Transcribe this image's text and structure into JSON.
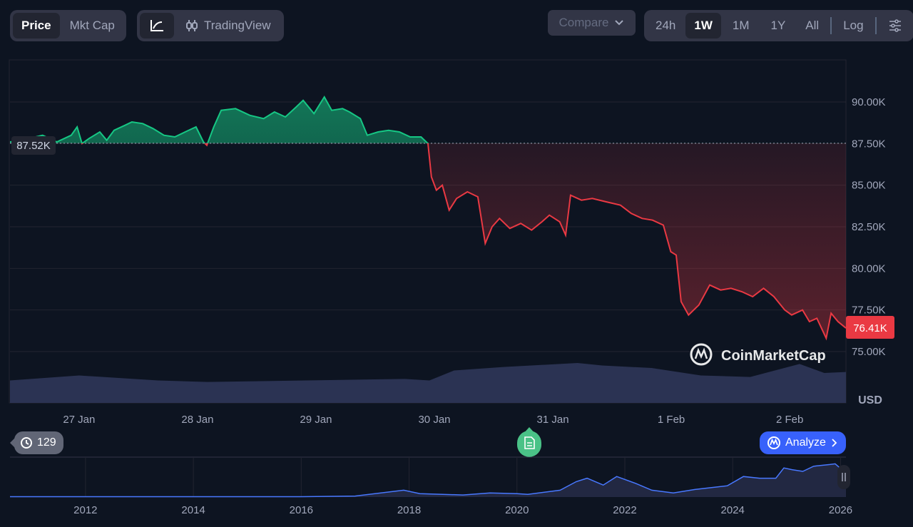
{
  "toolbar": {
    "metric_tabs": [
      "Price",
      "Mkt Cap"
    ],
    "active_metric": "Price",
    "chart_type_tradingview": "TradingView",
    "compare": "Compare",
    "ranges": [
      "24h",
      "1W",
      "1M",
      "1Y",
      "All"
    ],
    "active_range": "1W",
    "log": "Log"
  },
  "colors": {
    "up": "#16c784",
    "down": "#ea3943",
    "navigator": "#4878ff",
    "background": "#0d1421"
  },
  "watermark": "CoinMarketCap",
  "history_count": "129",
  "analyze_label": "Analyze",
  "chart_data": {
    "type": "line",
    "title": "",
    "currency_label": "USD",
    "baseline": 87.52,
    "baseline_label": "87.52K",
    "current": 76.41,
    "current_label": "76.41K",
    "ylim": [
      73.5,
      93
    ],
    "yticks": [
      75,
      77.5,
      80,
      82.5,
      85,
      87.5,
      90
    ],
    "ytick_labels": [
      "75.00K",
      "77.50K",
      "80.00K",
      "82.50K",
      "85.00K",
      "87.50K",
      "90.00K"
    ],
    "xlim_hours": [
      10,
      179.4
    ],
    "xticks_hours": [
      24,
      48,
      72,
      96,
      120,
      144,
      168
    ],
    "xtick_labels": [
      "27 Jan",
      "28 Jan",
      "29 Jan",
      "30 Jan",
      "31 Jan",
      "1 Feb",
      "2 Feb"
    ],
    "x_hours": [
      10,
      12.3,
      16.6,
      19.5,
      22.4,
      23.6,
      24.6,
      26,
      28.2,
      29.6,
      31.1,
      33.3,
      34.7,
      36.9,
      39,
      41.2,
      43.4,
      45.5,
      47.7,
      49.2,
      49.9,
      51.3,
      52.8,
      55.7,
      58.6,
      61.4,
      63.6,
      65.8,
      68,
      69.4,
      71.6,
      73.7,
      75.2,
      77.4,
      78.8,
      81,
      82.4,
      84.6,
      86.7,
      88.9,
      91.1,
      93.3,
      94.7,
      95.4,
      96.4,
      97.6,
      99,
      100.5,
      102.7,
      104.8,
      106.3,
      107.7,
      109.2,
      111.3,
      113.5,
      115.7,
      117.8,
      119.3,
      121.4,
      122.6,
      123.6,
      125.8,
      128,
      130.8,
      133.7,
      135.9,
      138.1,
      140.2,
      142.4,
      143.9,
      145,
      146,
      147.5,
      149.6,
      151.8,
      154,
      156.1,
      158.3,
      160.5,
      162.7,
      164.8,
      167,
      168.4,
      170.6,
      172,
      173.5,
      175.4,
      176.4,
      177.8,
      179.4
    ],
    "price_k": [
      87.6,
      87.7,
      88.0,
      87.6,
      88.0,
      88.5,
      87.5,
      87.8,
      88.2,
      87.7,
      88.3,
      88.6,
      88.8,
      88.7,
      88.4,
      88.0,
      87.9,
      88.2,
      88.5,
      87.6,
      87.4,
      88.5,
      89.5,
      89.6,
      89.2,
      89.0,
      89.4,
      89.1,
      89.7,
      90.1,
      89.3,
      90.3,
      89.5,
      89.6,
      89.4,
      89.0,
      88.0,
      88.2,
      88.3,
      88.2,
      87.9,
      87.9,
      87.5,
      85.5,
      84.7,
      85.0,
      83.5,
      84.2,
      84.6,
      84.3,
      81.5,
      82.5,
      83.0,
      82.4,
      82.7,
      82.3,
      82.8,
      83.2,
      82.8,
      82.0,
      84.4,
      84.1,
      84.2,
      84.0,
      83.8,
      83.3,
      83.0,
      82.9,
      82.6,
      81.0,
      80.8,
      78.0,
      77.2,
      77.8,
      79.0,
      78.7,
      78.8,
      78.6,
      78.3,
      78.8,
      78.3,
      77.5,
      77.2,
      77.5,
      76.8,
      77.0,
      75.8,
      77.3,
      76.8,
      76.41
    ],
    "volume_relative_hours": [
      10,
      24,
      40,
      50,
      70,
      90,
      95,
      100,
      110,
      125,
      130,
      140,
      150,
      160,
      170,
      175,
      179.4
    ],
    "volume_relative": [
      0.45,
      0.55,
      0.45,
      0.42,
      0.45,
      0.48,
      0.45,
      0.65,
      0.72,
      0.8,
      0.75,
      0.7,
      0.55,
      0.52,
      0.78,
      0.6,
      0.62
    ],
    "navigator": {
      "xtick_labels": [
        "2012",
        "2014",
        "2016",
        "2018",
        "2020",
        "2022",
        "2024",
        "2026"
      ],
      "xticks_year": [
        2012,
        2014,
        2016,
        2018,
        2020,
        2022,
        2024,
        2026
      ],
      "xlim_year": [
        2010.6,
        2026.1
      ],
      "years": [
        2010.6,
        2016,
        2017,
        2017.9,
        2018.2,
        2019,
        2019.5,
        2020,
        2020.2,
        2020.8,
        2021.1,
        2021.3,
        2021.6,
        2021.85,
        2022.2,
        2022.5,
        2022.9,
        2023.3,
        2023.9,
        2024.2,
        2024.5,
        2024.8,
        2024.95,
        2025.1,
        2025.3,
        2025.5,
        2025.8,
        2025.9,
        2026.1
      ],
      "value_relative": [
        0.01,
        0.01,
        0.03,
        0.2,
        0.1,
        0.06,
        0.12,
        0.1,
        0.08,
        0.2,
        0.45,
        0.55,
        0.35,
        0.6,
        0.4,
        0.2,
        0.12,
        0.22,
        0.33,
        0.6,
        0.55,
        0.55,
        0.85,
        0.8,
        0.75,
        0.9,
        0.95,
        0.97,
        0.7
      ]
    }
  }
}
